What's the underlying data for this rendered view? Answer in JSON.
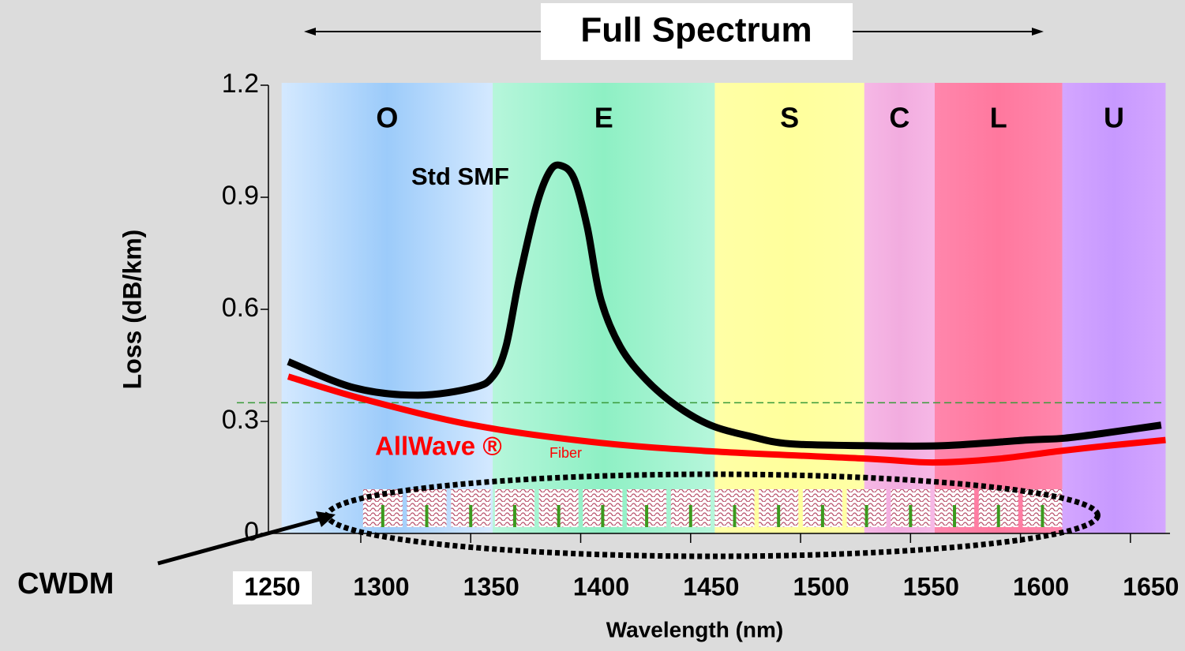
{
  "chart_data": {
    "type": "line",
    "title": "Full Spectrum",
    "x_label": "Wavelength (nm)",
    "y_label": "Loss (dB/km)",
    "xlim": [
      1258,
      1668
    ],
    "xticks": [
      1250,
      1300,
      1350,
      1400,
      1450,
      1500,
      1550,
      1600,
      1650
    ],
    "ylim": [
      0,
      1.2
    ],
    "yticks": [
      0,
      0.3,
      0.6,
      0.9,
      1.2
    ],
    "bands": [
      {
        "label": "O",
        "start": 1264,
        "end": 1360,
        "colors": [
          "#d4e9ff",
          "#9ccbfa"
        ]
      },
      {
        "label": "E",
        "start": 1360,
        "end": 1461,
        "colors": [
          "#b6f6db",
          "#8ef0c4"
        ]
      },
      {
        "label": "S",
        "start": 1461,
        "end": 1529,
        "colors": [
          "#ffffa6",
          "#ffff9c"
        ]
      },
      {
        "label": "C",
        "start": 1529,
        "end": 1561,
        "colors": [
          "#f6b8e6",
          "#f2acdf"
        ]
      },
      {
        "label": "L",
        "start": 1561,
        "end": 1619,
        "colors": [
          "#ff86ac",
          "#ff789e"
        ]
      },
      {
        "label": "U",
        "start": 1619,
        "end": 1666,
        "colors": [
          "#d4a6ff",
          "#c799ff"
        ]
      }
    ],
    "series": [
      {
        "name": "Std SMF",
        "color": "#000000",
        "x": [
          1267,
          1297,
          1326,
          1351,
          1360,
          1366,
          1372,
          1380,
          1386,
          1391,
          1397,
          1403,
          1409,
          1418,
          1430,
          1444,
          1459,
          1477,
          1495,
          1530,
          1565,
          1603,
          1620,
          1640,
          1664
        ],
        "values": [
          0.46,
          0.39,
          0.37,
          0.39,
          0.42,
          0.5,
          0.68,
          0.88,
          0.97,
          0.985,
          0.95,
          0.82,
          0.63,
          0.5,
          0.41,
          0.34,
          0.29,
          0.26,
          0.24,
          0.235,
          0.235,
          0.25,
          0.255,
          0.27,
          0.29
        ]
      },
      {
        "name": "AllWave ®",
        "label_suffix": "Fiber",
        "color": "#ff0000",
        "x": [
          1267,
          1301,
          1351,
          1405,
          1459,
          1531,
          1560,
          1590,
          1617,
          1640,
          1666
        ],
        "values": [
          0.42,
          0.36,
          0.29,
          0.245,
          0.22,
          0.2,
          0.19,
          0.2,
          0.22,
          0.235,
          0.25
        ]
      }
    ],
    "reference_line": {
      "value": 0.35,
      "color": "#3a9a3a"
    },
    "cwdm": {
      "label": "CWDM",
      "channels": [
        1310,
        1330,
        1350,
        1370,
        1390,
        1410,
        1430,
        1450,
        1470,
        1490,
        1510,
        1530,
        1550,
        1570,
        1590,
        1610
      ]
    }
  }
}
